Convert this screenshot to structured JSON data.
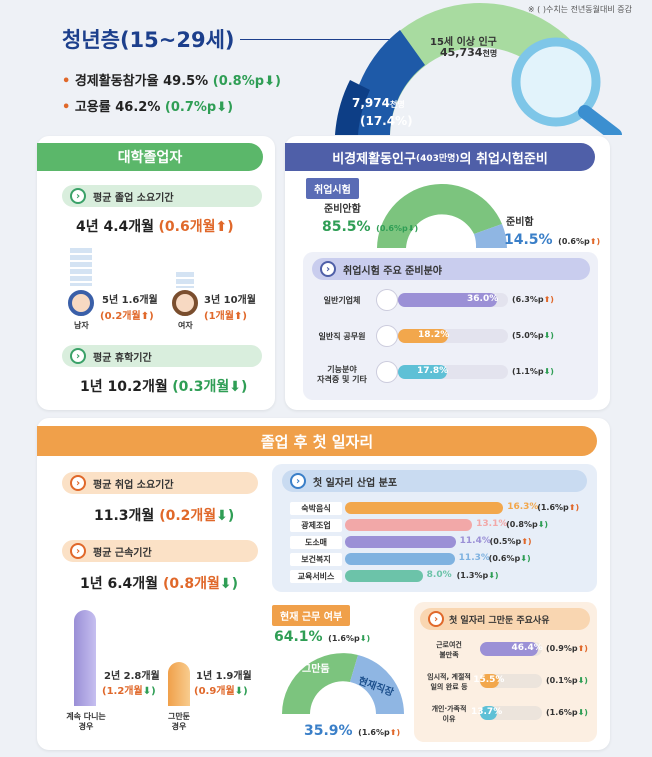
{
  "note": "※ ( )수치는 전년동월대비 증감",
  "youth": {
    "title": "청년층(15~29세)",
    "econ_label": "경제활동참가율",
    "econ_value": "49.5%",
    "econ_change": "(0.8%p",
    "emp_label": "고용률",
    "emp_value": "46.2%",
    "emp_change": "(0.7%p",
    "pop_label": "15세 이상 인구",
    "pop_value": "45,734",
    "pop_unit": "천명",
    "youth_value": "7,974",
    "youth_unit": "천명",
    "youth_share": "(17.4%)"
  },
  "graduates": {
    "header": "대학졸업자",
    "duration_label": "평균 졸업 소요기간",
    "duration_value": "4년 4.4개월",
    "duration_change": "(0.6개월",
    "male_value": "5년 1.6개월",
    "male_change": "(0.2개월",
    "male_label": "남자",
    "female_value": "3년 10개월",
    "female_change": "(1개월",
    "female_label": "여자",
    "leave_label": "평균 휴학기간",
    "leave_value": "1년 10.2개월",
    "leave_change": "(0.3개월"
  },
  "inactive": {
    "header": "비경제활동인구",
    "header_sub": "(403만명)",
    "header_tail": "의 취업시험준비",
    "exam_tag": "취업시험",
    "not_prep_label": "준비안함",
    "not_prep_value": "85.5%",
    "not_prep_change": "(0.6%p",
    "prep_label": "준비함",
    "prep_value": "14.5%",
    "prep_change": "(0.6%p",
    "fields_title": "취업시험 주요 준비분야",
    "fields": [
      {
        "label": "일반기업체",
        "value": "36.0%",
        "change": "(6.3%p",
        "pct": 36.0,
        "color": "#9b90d6"
      },
      {
        "label": "일반직 공무원",
        "value": "18.2%",
        "change": "(5.0%p",
        "pct": 18.2,
        "color": "#f2a74c"
      },
      {
        "label": "기능분야\n자격증 및 기타",
        "value": "17.8%",
        "change": "(1.1%p",
        "pct": 17.8,
        "color": "#5ec0d6"
      }
    ]
  },
  "firstjob": {
    "header": "졸업 후 첫 일자리",
    "search_label": "평균 취업 소요기간",
    "search_value": "11.3개월",
    "search_change": "(0.2개월",
    "tenure_label": "평균 근속기간",
    "tenure_value": "1년 6.4개월",
    "tenure_change": "(0.8개월",
    "staying_value": "2년 2.8개월",
    "staying_change": "(1.2개월",
    "staying_label": "계속 다니는\n경우",
    "quit_value": "1년 1.9개월",
    "quit_change": "(0.9개월",
    "quit_label": "그만둔\n경우",
    "industry_title": "첫 일자리 산업 분포",
    "industries": [
      {
        "label": "숙박음식",
        "value": "16.3%",
        "change": "(1.6%p",
        "pct": 16.3,
        "color": "#f2a74c",
        "dir": "up"
      },
      {
        "label": "광제조업",
        "value": "13.1%",
        "change": "(0.8%p",
        "pct": 13.1,
        "color": "#f2a8a8",
        "dir": "down"
      },
      {
        "label": "도소매",
        "value": "11.4%",
        "change": "(0.5%p",
        "pct": 11.4,
        "color": "#9b90d6",
        "dir": "up"
      },
      {
        "label": "보건복지",
        "value": "11.3%",
        "change": "(0.6%p",
        "pct": 11.3,
        "color": "#7fb2e0",
        "dir": "down"
      },
      {
        "label": "교육서비스",
        "value": "8.0%",
        "change": "(1.3%p",
        "pct": 8.0,
        "color": "#6cc3a9",
        "dir": "down"
      }
    ],
    "working_title": "현재 근무 여부",
    "quit_share": "64.1%",
    "quit_share_change": "(1.6%p",
    "quit_tag": "그만둠",
    "current_tag": "현재직장",
    "current_share": "35.9%",
    "current_share_change": "(1.6%p",
    "reasons_title": "첫 일자리 그만둔 주요사유",
    "reasons": [
      {
        "label": "근로여건\n불만족",
        "value": "46.4%",
        "change": "(0.9%p",
        "pct": 46.4,
        "color": "#9b90d6",
        "dir": "up"
      },
      {
        "label": "임시적, 계절적\n일의 완료 등",
        "value": "15.5%",
        "change": "(0.1%p",
        "pct": 15.5,
        "color": "#f2a74c",
        "dir": "down"
      },
      {
        "label": "개인·가족적\n이유",
        "value": "13.7%",
        "change": "(1.6%p",
        "pct": 13.7,
        "color": "#5ec0d6",
        "dir": "down"
      }
    ]
  }
}
